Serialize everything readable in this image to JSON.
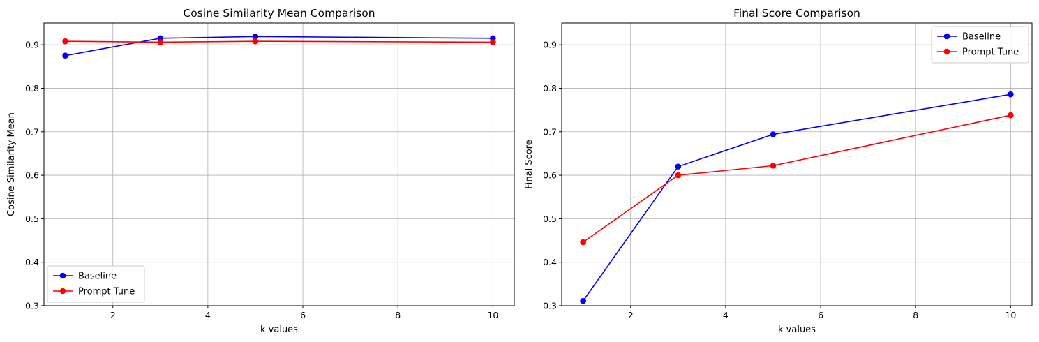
{
  "chart_data": [
    {
      "type": "line",
      "title": "Cosine Similarity Mean Comparison",
      "xlabel": "k values",
      "ylabel": "Cosine Similarity Mean",
      "x": [
        1,
        3,
        5,
        10
      ],
      "series": [
        {
          "name": "Baseline",
          "color": "#0000ff",
          "values": [
            0.875,
            0.915,
            0.919,
            0.915
          ]
        },
        {
          "name": "Prompt Tune",
          "color": "#ff0000",
          "values": [
            0.908,
            0.906,
            0.908,
            0.906
          ]
        }
      ],
      "xlim": [
        0.55,
        10.45
      ],
      "ylim": [
        0.3,
        0.95
      ],
      "xticks": [
        2,
        4,
        6,
        8,
        10
      ],
      "yticks": [
        0.3,
        0.4,
        0.5,
        0.6,
        0.7,
        0.8,
        0.9
      ],
      "xtick_labels": [
        "2",
        "4",
        "6",
        "8",
        "10"
      ],
      "ytick_labels": [
        "0.3",
        "0.4",
        "0.5",
        "0.6",
        "0.7",
        "0.8",
        "0.9"
      ],
      "grid": true,
      "marker": "circle",
      "legend_position": "lower-left"
    },
    {
      "type": "line",
      "title": "Final Score Comparison",
      "xlabel": "k values",
      "ylabel": "Final Score",
      "x": [
        1,
        3,
        5,
        10
      ],
      "series": [
        {
          "name": "Baseline",
          "color": "#0000ff",
          "values": [
            0.311,
            0.62,
            0.694,
            0.786
          ]
        },
        {
          "name": "Prompt Tune",
          "color": "#ff0000",
          "values": [
            0.446,
            0.6,
            0.622,
            0.738
          ]
        }
      ],
      "xlim": [
        0.55,
        10.45
      ],
      "ylim": [
        0.3,
        0.95
      ],
      "xticks": [
        2,
        4,
        6,
        8,
        10
      ],
      "yticks": [
        0.3,
        0.4,
        0.5,
        0.6,
        0.7,
        0.8,
        0.9
      ],
      "xtick_labels": [
        "2",
        "4",
        "6",
        "8",
        "10"
      ],
      "ytick_labels": [
        "0.3",
        "0.4",
        "0.5",
        "0.6",
        "0.7",
        "0.8",
        "0.9"
      ],
      "grid": true,
      "marker": "circle",
      "legend_position": "upper-right"
    }
  ]
}
